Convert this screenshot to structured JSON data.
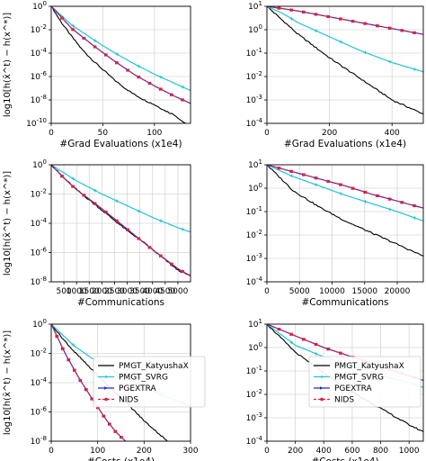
{
  "colors": {
    "PMGT_KatyushaX": "#000000",
    "PMGT_SVRG": "#22c4d4",
    "PGEXTRA": "#1f2fd6",
    "NIDS": "#e0203c",
    "grid": "#d6d6d6"
  },
  "chart_data": [
    {
      "type": "line",
      "log_y": true,
      "grid": true,
      "xlabel": "#Grad Evaluations (x1e4)",
      "ylabel": "log10[h(x̄^t) − h(x^*)]",
      "xlim": [
        0,
        135
      ],
      "ylim_exp": [
        -10,
        0
      ],
      "xticks": [
        0,
        50,
        100
      ],
      "xtick_labels": [
        "0",
        "50",
        "100"
      ],
      "yticks_exp": [
        -10,
        -8,
        -6,
        -4,
        -2,
        0
      ],
      "series": [
        {
          "name": "PMGT_KatyushaX",
          "x": [
            0,
            10,
            20,
            30,
            40,
            50,
            60,
            70,
            80,
            90,
            100,
            110,
            120,
            125,
            130
          ],
          "y_exp": [
            0,
            -1.4,
            -2.6,
            -3.7,
            -4.6,
            -5.4,
            -6.2,
            -6.9,
            -7.5,
            -8.0,
            -8.4,
            -8.9,
            -9.3,
            -9.7,
            -10
          ]
        },
        {
          "name": "PMGT_SVRG",
          "x": [
            0,
            20,
            40,
            60,
            80,
            100,
            120,
            135
          ],
          "y_exp": [
            0,
            -1.6,
            -2.8,
            -3.9,
            -4.9,
            -5.8,
            -6.6,
            -7.2
          ]
        },
        {
          "name": "PGEXTRA",
          "x": [
            0,
            20,
            40,
            60,
            80,
            100,
            120,
            135
          ],
          "y_exp": [
            0,
            -1.9,
            -3.3,
            -4.6,
            -5.8,
            -6.8,
            -7.7,
            -8.3
          ]
        },
        {
          "name": "NIDS",
          "x": [
            0,
            20,
            40,
            60,
            80,
            100,
            120,
            135
          ],
          "y_exp": [
            0,
            -1.9,
            -3.3,
            -4.6,
            -5.8,
            -6.8,
            -7.7,
            -8.3
          ]
        }
      ]
    },
    {
      "type": "line",
      "log_y": true,
      "grid": true,
      "xlabel": "#Grad Evaluations (x1e4)",
      "ylabel": "",
      "xlim": [
        0,
        500
      ],
      "ylim_exp": [
        -4,
        1
      ],
      "xticks": [
        0,
        200,
        400
      ],
      "xtick_labels": [
        "0",
        "200",
        "400"
      ],
      "yticks_exp": [
        -4,
        -3,
        -2,
        -1,
        0,
        1
      ],
      "series": [
        {
          "name": "PMGT_KatyushaX",
          "x": [
            0,
            50,
            100,
            200,
            300,
            400,
            500
          ],
          "y_exp": [
            1,
            0.4,
            -0.2,
            -1.2,
            -2.1,
            -3.0,
            -3.6
          ]
        },
        {
          "name": "PMGT_SVRG",
          "x": [
            0,
            50,
            100,
            200,
            300,
            400,
            500
          ],
          "y_exp": [
            1,
            0.7,
            0.3,
            -0.3,
            -0.9,
            -1.4,
            -1.8
          ]
        },
        {
          "name": "PGEXTRA",
          "x": [
            0,
            100,
            200,
            300,
            400,
            500
          ],
          "y_exp": [
            1,
            0.8,
            0.55,
            0.3,
            0.05,
            -0.2
          ]
        },
        {
          "name": "NIDS",
          "x": [
            0,
            100,
            200,
            300,
            400,
            500
          ],
          "y_exp": [
            1,
            0.8,
            0.55,
            0.3,
            0.05,
            -0.2
          ]
        }
      ]
    },
    {
      "type": "line",
      "log_y": true,
      "grid": true,
      "xlabel": "#Communications",
      "ylabel": "log10[h(x̄^t) − h(x^*)]",
      "xlim": [
        0,
        5500
      ],
      "ylim_exp": [
        -8,
        0
      ],
      "xticks": [
        500,
        1000,
        1500,
        2000,
        2500,
        3000,
        3500,
        4000,
        4500,
        5000
      ],
      "xtick_labels": [
        "500",
        "1000",
        "1500",
        "2000",
        "2500",
        "3000",
        "3500",
        "4000",
        "4500",
        "5000"
      ],
      "yticks_exp": [
        -8,
        -6,
        -4,
        -2,
        0
      ],
      "series": [
        {
          "name": "PMGT_KatyushaX",
          "x": [
            0,
            500,
            1000,
            1500,
            2000,
            2500,
            3000,
            3500,
            4000,
            4500,
            5000,
            5500
          ],
          "y_exp": [
            0,
            -0.9,
            -1.7,
            -2.4,
            -3.1,
            -3.8,
            -4.5,
            -5.1,
            -5.8,
            -6.5,
            -7.2,
            -7.6
          ]
        },
        {
          "name": "PMGT_SVRG",
          "x": [
            0,
            1000,
            2000,
            3000,
            4000,
            5000,
            5500
          ],
          "y_exp": [
            0,
            -1.1,
            -2.0,
            -2.8,
            -3.6,
            -4.3,
            -4.6
          ]
        },
        {
          "name": "PGEXTRA",
          "x": [
            0,
            500,
            1000,
            2000,
            3000,
            4000,
            5000,
            5500
          ],
          "y_exp": [
            0,
            -0.9,
            -1.7,
            -3.0,
            -4.4,
            -5.8,
            -7.1,
            -7.6
          ]
        },
        {
          "name": "NIDS",
          "x": [
            0,
            500,
            1000,
            2000,
            3000,
            4000,
            5000,
            5500
          ],
          "y_exp": [
            0,
            -0.9,
            -1.7,
            -3.0,
            -4.4,
            -5.8,
            -7.1,
            -7.6
          ]
        }
      ]
    },
    {
      "type": "line",
      "log_y": true,
      "grid": true,
      "xlabel": "#Communications",
      "ylabel": "",
      "xlim": [
        0,
        24000
      ],
      "ylim_exp": [
        -4,
        1
      ],
      "xticks": [
        0,
        5000,
        10000,
        15000,
        20000
      ],
      "xtick_labels": [
        "0",
        "5000",
        "10000",
        "15000",
        "20000"
      ],
      "yticks_exp": [
        -4,
        -3,
        -2,
        -1,
        0,
        1
      ],
      "series": [
        {
          "name": "PMGT_KatyushaX",
          "x": [
            0,
            4000,
            8000,
            12000,
            16000,
            20000,
            24000
          ],
          "y_exp": [
            1,
            -0.1,
            -0.8,
            -1.4,
            -1.9,
            -2.4,
            -2.9
          ]
        },
        {
          "name": "PMGT_SVRG",
          "x": [
            0,
            4000,
            8000,
            12000,
            16000,
            20000,
            24000
          ],
          "y_exp": [
            1,
            0.5,
            0.1,
            -0.3,
            -0.65,
            -1.0,
            -1.4
          ]
        },
        {
          "name": "PGEXTRA",
          "x": [
            0,
            4000,
            8000,
            12000,
            16000,
            20000,
            24000
          ],
          "y_exp": [
            1,
            0.7,
            0.4,
            0.1,
            -0.25,
            -0.55,
            -0.85
          ]
        },
        {
          "name": "NIDS",
          "x": [
            0,
            4000,
            8000,
            12000,
            16000,
            20000,
            24000
          ],
          "y_exp": [
            1,
            0.7,
            0.4,
            0.1,
            -0.25,
            -0.55,
            -0.85
          ]
        }
      ]
    },
    {
      "type": "line",
      "log_y": true,
      "grid": true,
      "xlabel": "#Costs (x1e4)",
      "ylabel": "log10[h(x̄^t) − h(x^*)]",
      "xlim": [
        0,
        300
      ],
      "ylim_exp": [
        -8,
        0
      ],
      "xticks": [
        0,
        100,
        200,
        300
      ],
      "xtick_labels": [
        "0",
        "100",
        "200",
        "300"
      ],
      "yticks_exp": [
        -8,
        -6,
        -4,
        -2,
        0
      ],
      "legend_position": "center-right",
      "series": [
        {
          "name": "PMGT_KatyushaX",
          "x": [
            0,
            25,
            50,
            75,
            100,
            125,
            150,
            175,
            200,
            225,
            250
          ],
          "y_exp": [
            0,
            -1.0,
            -1.9,
            -2.7,
            -3.5,
            -4.3,
            -5.0,
            -5.8,
            -6.6,
            -7.3,
            -8.0
          ]
        },
        {
          "name": "PMGT_SVRG",
          "x": [
            0,
            50,
            100,
            150,
            200,
            250,
            300
          ],
          "y_exp": [
            0,
            -1.5,
            -2.6,
            -3.5,
            -4.3,
            -5.0,
            -5.6
          ]
        },
        {
          "name": "PGEXTRA",
          "x": [
            0,
            30,
            60,
            90,
            120,
            140,
            160
          ],
          "y_exp": [
            0,
            -2.0,
            -3.7,
            -5.2,
            -6.6,
            -7.4,
            -8.0
          ]
        },
        {
          "name": "NIDS",
          "x": [
            0,
            30,
            60,
            90,
            120,
            140,
            160
          ],
          "y_exp": [
            0,
            -2.0,
            -3.7,
            -5.2,
            -6.6,
            -7.4,
            -8.0
          ]
        }
      ]
    },
    {
      "type": "line",
      "log_y": true,
      "grid": true,
      "xlabel": "#Costs (x1e4)",
      "ylabel": "",
      "xlim": [
        0,
        1100
      ],
      "ylim_exp": [
        -4,
        1
      ],
      "xticks": [
        0,
        200,
        400,
        600,
        800,
        1000
      ],
      "xtick_labels": [
        "0",
        "200",
        "400",
        "600",
        "800",
        "1000"
      ],
      "yticks_exp": [
        -4,
        -3,
        -2,
        -1,
        0,
        1
      ],
      "legend_position": "center-right",
      "series": [
        {
          "name": "PMGT_KatyushaX",
          "x": [
            0,
            200,
            400,
            600,
            800,
            1000,
            1100
          ],
          "y_exp": [
            1,
            -0.2,
            -1.1,
            -1.9,
            -2.6,
            -3.3,
            -3.6
          ]
        },
        {
          "name": "PMGT_SVRG",
          "x": [
            0,
            200,
            400,
            600,
            800,
            1000,
            1100
          ],
          "y_exp": [
            1,
            0.1,
            -0.4,
            -0.8,
            -1.2,
            -1.5,
            -1.7
          ]
        },
        {
          "name": "PGEXTRA",
          "x": [
            0,
            200,
            400,
            600,
            800,
            1000,
            1100
          ],
          "y_exp": [
            1,
            0.5,
            0.0,
            -0.4,
            -0.8,
            -1.2,
            -1.4
          ]
        },
        {
          "name": "NIDS",
          "x": [
            0,
            200,
            400,
            600,
            800,
            1000,
            1100
          ],
          "y_exp": [
            1,
            0.5,
            0.0,
            -0.4,
            -0.8,
            -1.2,
            -1.4
          ]
        }
      ]
    }
  ]
}
